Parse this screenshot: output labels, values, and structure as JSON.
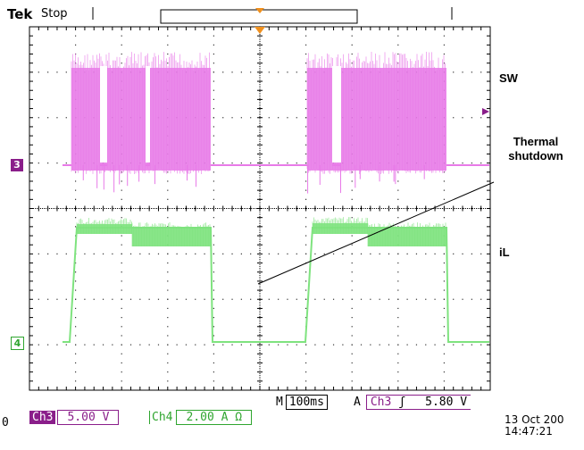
{
  "header": {
    "brand": "Tek",
    "acq_state": "Stop"
  },
  "traces": {
    "sw_label": "SW",
    "il_label": "iL",
    "annotation": [
      "Thermal",
      "shutdown"
    ]
  },
  "markers": {
    "ch3": "3",
    "ch4": "4"
  },
  "status": {
    "timebase_prefix": "M",
    "timebase": "100ms",
    "trigger_prefix": "A",
    "trigger_source": "Ch3",
    "trigger_slope_icon": "rising-edge-icon",
    "trigger_slope_glyph": "ʃ",
    "trigger_level": "5.80 V",
    "ch3_name": "Ch3",
    "ch3_scale": "5.00 V",
    "ch4_name": "Ch4",
    "ch4_scale": "2.00 A Ω",
    "left_fragment": "0"
  },
  "datetime": {
    "date": "13 Oct  200",
    "time": "14:47:21"
  },
  "colors": {
    "ch3": "#e87ae8",
    "ch4": "#7fe37f",
    "ch3_dark": "#8a1e8a",
    "ch4_dark": "#2fa52f"
  }
}
